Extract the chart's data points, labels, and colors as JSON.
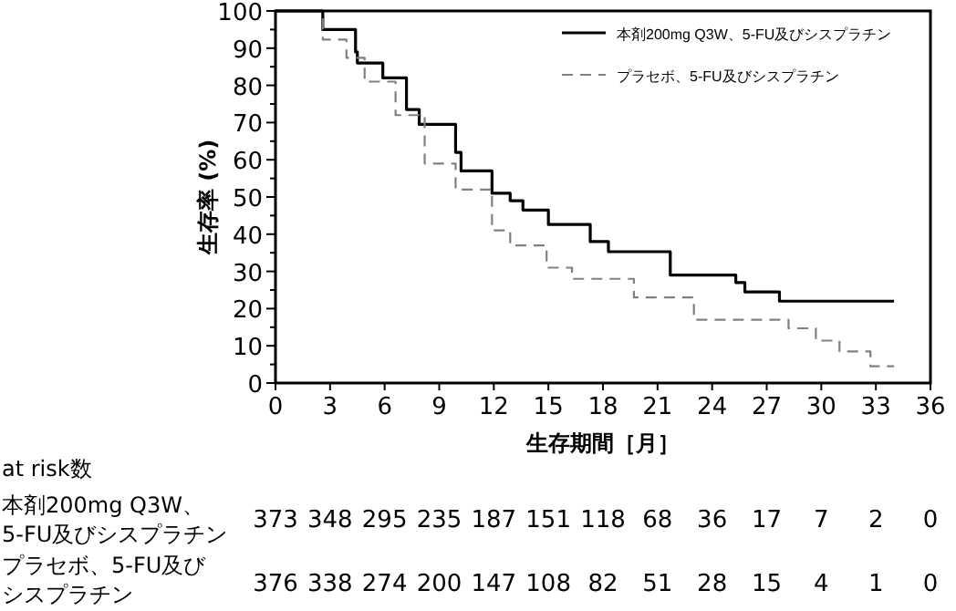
{
  "chart_data": {
    "type": "step",
    "xlabel": "生存期間［月］",
    "ylabel": "生存率 (%)",
    "xlim": [
      0,
      36
    ],
    "ylim": [
      0,
      100
    ],
    "xticks": [
      0,
      3,
      6,
      9,
      12,
      15,
      18,
      21,
      24,
      27,
      30,
      33,
      36
    ],
    "yticks": [
      0,
      10,
      20,
      30,
      40,
      50,
      60,
      70,
      80,
      90,
      100
    ],
    "grid": false,
    "legend": "top right",
    "series": [
      {
        "name": "本剤200mg Q3W、5-FU及びシスプラチン",
        "color": "#000000",
        "line_style": "solid",
        "x": [
          0,
          2.6,
          4.4,
          4.5,
          5.9,
          7.2,
          7.9,
          9.9,
          10.2,
          11.9,
          12.9,
          13.6,
          15,
          17.3,
          18.3,
          21.7,
          25.3,
          25.8,
          27.7,
          34
        ],
        "values": [
          100,
          95,
          89,
          86,
          82,
          73.5,
          69.5,
          62,
          57,
          51,
          49,
          46.5,
          42.6,
          38,
          35.3,
          29,
          27,
          24.5,
          22,
          22
        ]
      },
      {
        "name": "プラセボ、5-FU及びシスプラチン",
        "color": "#808080",
        "line_style": "dashed",
        "x": [
          0,
          2.6,
          3.9,
          4.9,
          6.6,
          8.2,
          9.9,
          11.9,
          12.9,
          14.9,
          16.3,
          19.7,
          23,
          27,
          28.2,
          29.7,
          31,
          32.7,
          34
        ],
        "values": [
          100,
          92.3,
          87.4,
          81,
          72,
          59,
          52,
          41,
          37,
          31,
          28,
          23,
          17,
          17,
          14.7,
          11.4,
          8.5,
          4.5,
          4.5
        ]
      }
    ],
    "annotations": [
      "at risk数",
      "本剤200mg Q3W、",
      "5-FU及びシスプラチン",
      "373 348 295 235 187 151 118 68 36 17 7 2 0",
      "プラセボ、5-FU及び",
      "シスプラチン",
      "376 338 274 200 147 108 82 51 28 15 4 1 0"
    ]
  }
}
